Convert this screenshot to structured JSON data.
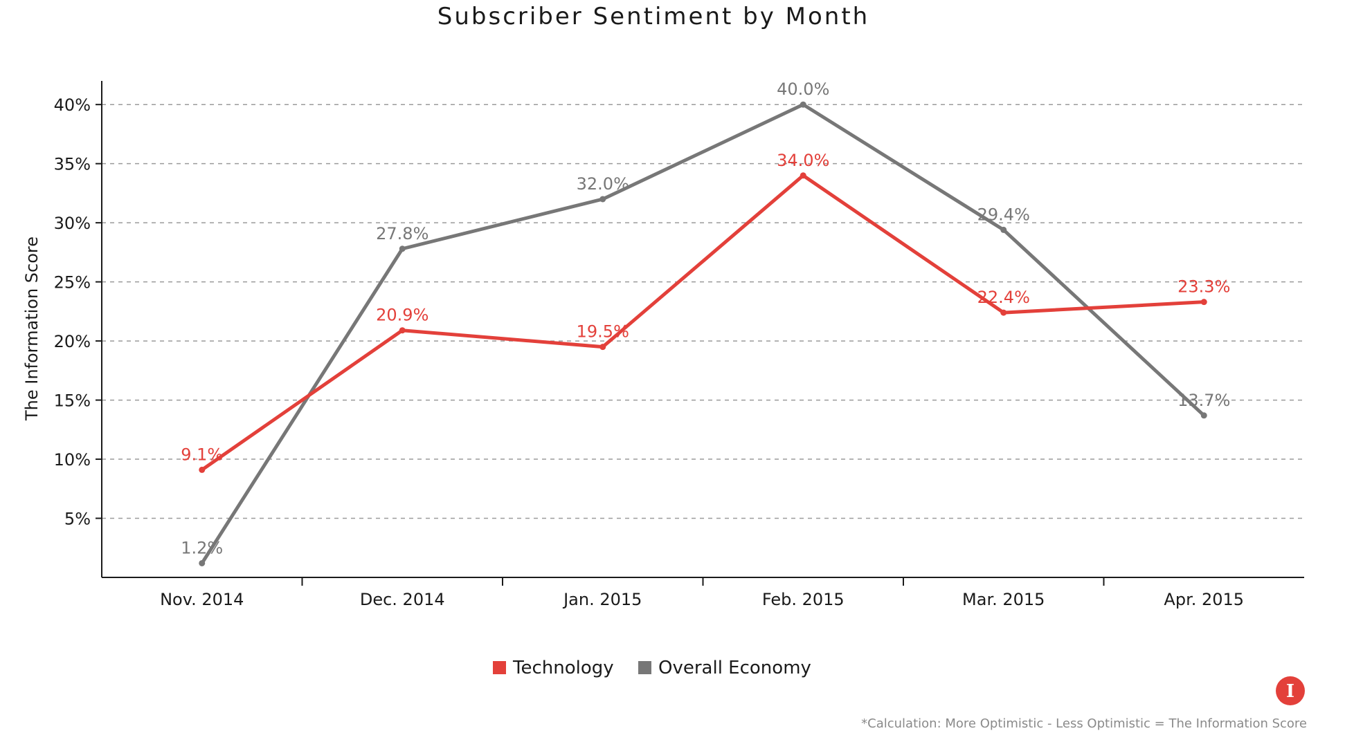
{
  "chart_data": {
    "type": "line",
    "title": "Subscriber Sentiment by Month",
    "xlabel": "",
    "ylabel": "The Information Score",
    "categories": [
      "Nov. 2014",
      "Dec. 2014",
      "Jan. 2015",
      "Feb. 2015",
      "Mar. 2015",
      "Apr. 2015"
    ],
    "ylim": [
      0,
      42
    ],
    "yticks": [
      5,
      10,
      15,
      20,
      25,
      30,
      35,
      40
    ],
    "ytick_labels": [
      "5%",
      "10%",
      "15%",
      "20%",
      "25%",
      "30%",
      "35%",
      "40%"
    ],
    "grid": true,
    "legend_position": "bottom-center",
    "series": [
      {
        "name": "Technology",
        "color": "#e3403a",
        "values": [
          9.1,
          20.9,
          19.5,
          34.0,
          22.4,
          23.3
        ],
        "labels": [
          "9.1%",
          "20.9%",
          "19.5%",
          "34.0%",
          "22.4%",
          "23.3%"
        ]
      },
      {
        "name": "Overall Economy",
        "color": "#777777",
        "values": [
          1.2,
          27.8,
          32.0,
          40.0,
          29.4,
          13.7
        ],
        "labels": [
          "1.2%",
          "27.8%",
          "32.0%",
          "40.0%",
          "29.4%",
          "13.7%"
        ]
      }
    ]
  },
  "footnote": "*Calculation: More Optimistic - Less Optimistic = The Information Score",
  "logo": {
    "icon": "information-logo-icon",
    "letter": "I",
    "color": "#e3403a"
  }
}
